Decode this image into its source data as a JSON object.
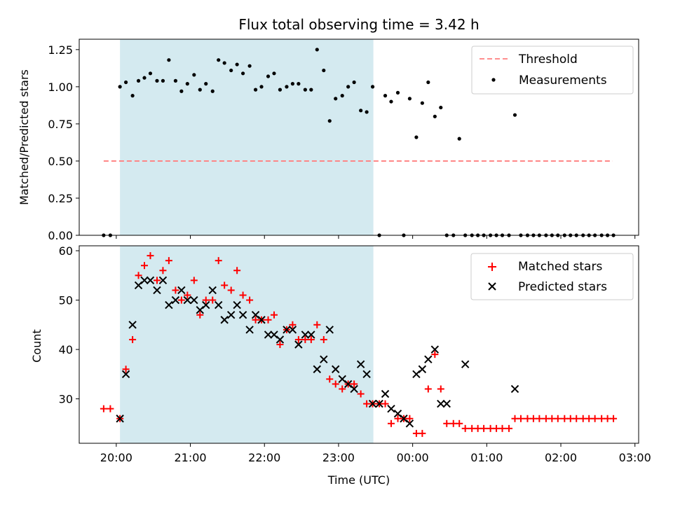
{
  "chart_data": [
    {
      "panel": "top",
      "type": "scatter",
      "title": "Flux total observing time = 3.42 h",
      "ylabel": "Matched/Predicted stars",
      "xlabel": "",
      "ylim": [
        0,
        1.32
      ],
      "yticks": [
        0.0,
        0.25,
        0.5,
        0.75,
        1.0,
        1.25
      ],
      "ytick_labels": [
        "0.00",
        "0.25",
        "0.50",
        "0.75",
        "1.00",
        "1.25"
      ],
      "xlim_hours": [
        19.5,
        27.05
      ],
      "xticks_hours": [
        20,
        21,
        22,
        23,
        24,
        25,
        26,
        27
      ],
      "shaded_interval_hours": [
        20.05,
        23.47
      ],
      "shade_color": "#d4eaf0",
      "threshold": {
        "name": "Threshold",
        "value": 0.5,
        "x_range_hours": [
          19.83,
          26.7
        ],
        "color": "#ff7f7f"
      },
      "legend": {
        "placement": "top-right",
        "entries": [
          "Threshold",
          "Measurements"
        ]
      },
      "series": [
        {
          "name": "Measurements",
          "color": "#000000",
          "x": [
            19.83,
            19.92,
            20.05,
            20.13,
            20.22,
            20.3,
            20.38,
            20.46,
            20.55,
            20.63,
            20.71,
            20.8,
            20.88,
            20.96,
            21.05,
            21.13,
            21.21,
            21.3,
            21.38,
            21.46,
            21.55,
            21.63,
            21.71,
            21.8,
            21.88,
            21.96,
            22.05,
            22.13,
            22.21,
            22.3,
            22.38,
            22.46,
            22.55,
            22.63,
            22.71,
            22.8,
            22.88,
            22.96,
            23.05,
            23.13,
            23.21,
            23.3,
            23.38,
            23.46,
            23.55,
            23.63,
            23.71,
            23.8,
            23.88,
            23.96,
            24.05,
            24.13,
            24.21,
            24.3,
            24.38,
            24.46,
            24.55,
            24.63,
            24.71,
            24.8,
            24.88,
            24.96,
            25.05,
            25.13,
            25.21,
            25.3,
            25.38,
            25.46,
            25.55,
            25.63,
            25.71,
            25.8,
            25.88,
            25.96,
            26.05,
            26.13,
            26.21,
            26.3,
            26.38,
            26.46,
            26.55,
            26.63,
            26.71
          ],
          "y": [
            0,
            0,
            1.0,
            1.03,
            0.94,
            1.04,
            1.06,
            1.09,
            1.04,
            1.04,
            1.18,
            1.04,
            0.97,
            1.02,
            1.08,
            0.98,
            1.02,
            0.97,
            1.18,
            1.16,
            1.11,
            1.15,
            1.09,
            1.14,
            0.98,
            1.0,
            1.07,
            1.09,
            0.98,
            1.0,
            1.02,
            1.02,
            0.98,
            0.98,
            1.25,
            1.11,
            0.77,
            0.92,
            0.94,
            1.0,
            1.03,
            0.84,
            0.83,
            1.0,
            0,
            0.94,
            0.9,
            0.96,
            0,
            0.92,
            0.66,
            0.89,
            1.03,
            0.8,
            0.86,
            0,
            0,
            0.65,
            0,
            0,
            0,
            0,
            0,
            0,
            0,
            0,
            0.81,
            0,
            0,
            0,
            0,
            0,
            0,
            0,
            0,
            0,
            0,
            0,
            0,
            0,
            0,
            0,
            0
          ]
        }
      ]
    },
    {
      "panel": "bottom",
      "type": "scatter",
      "title": "",
      "ylabel": "Count",
      "xlabel": "Time (UTC)",
      "ylim": [
        21,
        61
      ],
      "yticks": [
        30,
        40,
        50,
        60
      ],
      "ytick_labels": [
        "30",
        "40",
        "50",
        "60"
      ],
      "xlim_hours": [
        19.5,
        27.05
      ],
      "xticks_hours": [
        20,
        21,
        22,
        23,
        24,
        25,
        26,
        27
      ],
      "xtick_labels": [
        "20:00",
        "21:00",
        "22:00",
        "23:00",
        "00:00",
        "01:00",
        "02:00",
        "03:00"
      ],
      "shaded_interval_hours": [
        20.05,
        23.47
      ],
      "shade_color": "#d4eaf0",
      "legend": {
        "placement": "top-right",
        "entries": [
          "Matched stars",
          "Predicted stars"
        ]
      },
      "series": [
        {
          "name": "Matched stars",
          "marker": "plus",
          "color": "#ff0000",
          "x": [
            19.83,
            19.92,
            20.05,
            20.13,
            20.22,
            20.3,
            20.38,
            20.46,
            20.55,
            20.63,
            20.71,
            20.8,
            20.88,
            20.96,
            21.05,
            21.13,
            21.21,
            21.3,
            21.38,
            21.46,
            21.55,
            21.63,
            21.71,
            21.8,
            21.88,
            21.96,
            22.05,
            22.13,
            22.21,
            22.3,
            22.38,
            22.46,
            22.55,
            22.63,
            22.71,
            22.8,
            22.88,
            22.96,
            23.05,
            23.13,
            23.21,
            23.3,
            23.38,
            23.46,
            23.55,
            23.63,
            23.71,
            23.8,
            23.88,
            23.96,
            24.05,
            24.13,
            24.21,
            24.3,
            24.38,
            24.46,
            24.55,
            24.63,
            24.71,
            24.8,
            24.88,
            24.96,
            25.05,
            25.13,
            25.21,
            25.3,
            25.38,
            25.46,
            25.55,
            25.63,
            25.71,
            25.8,
            25.88,
            25.96,
            26.05,
            26.13,
            26.21,
            26.3,
            26.38,
            26.46,
            26.55,
            26.63,
            26.71
          ],
          "y": [
            28,
            28,
            26,
            36,
            42,
            55,
            57,
            59,
            54,
            56,
            58,
            52,
            50,
            51,
            54,
            47,
            50,
            50,
            58,
            53,
            52,
            56,
            51,
            50,
            46,
            46,
            46,
            47,
            41,
            44,
            45,
            42,
            42,
            42,
            45,
            42,
            34,
            33,
            32,
            33,
            33,
            31,
            29,
            29,
            29,
            29,
            25,
            26,
            26,
            26,
            23,
            23,
            32,
            39,
            32,
            25,
            25,
            25,
            24,
            24,
            24,
            24,
            24,
            24,
            24,
            24,
            26,
            26,
            26,
            26,
            26,
            26,
            26,
            26,
            26,
            26,
            26,
            26,
            26,
            26,
            26,
            26,
            26
          ]
        },
        {
          "name": "Predicted stars",
          "marker": "x",
          "color": "#000000",
          "x": [
            20.05,
            20.13,
            20.22,
            20.3,
            20.38,
            20.46,
            20.55,
            20.63,
            20.71,
            20.8,
            20.88,
            20.96,
            21.05,
            21.13,
            21.21,
            21.3,
            21.38,
            21.46,
            21.55,
            21.63,
            21.71,
            21.8,
            21.88,
            21.96,
            22.05,
            22.13,
            22.21,
            22.3,
            22.38,
            22.46,
            22.55,
            22.63,
            22.71,
            22.8,
            22.88,
            22.96,
            23.05,
            23.13,
            23.21,
            23.3,
            23.38,
            23.46,
            23.55,
            23.63,
            23.71,
            23.8,
            23.88,
            23.96,
            24.05,
            24.13,
            24.21,
            24.3,
            24.38,
            24.46,
            24.71,
            25.38
          ],
          "y": [
            26,
            35,
            45,
            53,
            54,
            54,
            52,
            54,
            49,
            50,
            52,
            50,
            50,
            48,
            49,
            52,
            49,
            46,
            47,
            49,
            47,
            44,
            47,
            46,
            43,
            43,
            42,
            44,
            44,
            41,
            43,
            43,
            36,
            38,
            44,
            36,
            34,
            33,
            32,
            37,
            35,
            29,
            29,
            31,
            28,
            27,
            26,
            25,
            35,
            36,
            38,
            40,
            29,
            29,
            37,
            32
          ]
        }
      ]
    }
  ]
}
